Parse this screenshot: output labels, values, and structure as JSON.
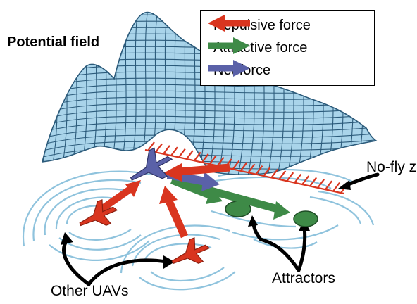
{
  "labels": {
    "title": "Potential field",
    "no_fly_zone": "No-fly zone",
    "attractors": "Attractors",
    "other_uavs": "Other UAVs"
  },
  "legend": [
    {
      "label": "Repulsive force",
      "color": "#d9351f"
    },
    {
      "label": "Attractive force",
      "color": "#3e8a47"
    },
    {
      "label": "Net force",
      "color": "#5a61a8"
    }
  ],
  "colors": {
    "surface_fill": "#a9d4ea",
    "surface_line": "#2b5a7a",
    "contour": "#8fc3dd",
    "hazard": "#d9351f",
    "uav_other": "#d9351f",
    "uav_self": "#5a61a8",
    "attractor": "#3e8a47",
    "callout": "#000000"
  }
}
